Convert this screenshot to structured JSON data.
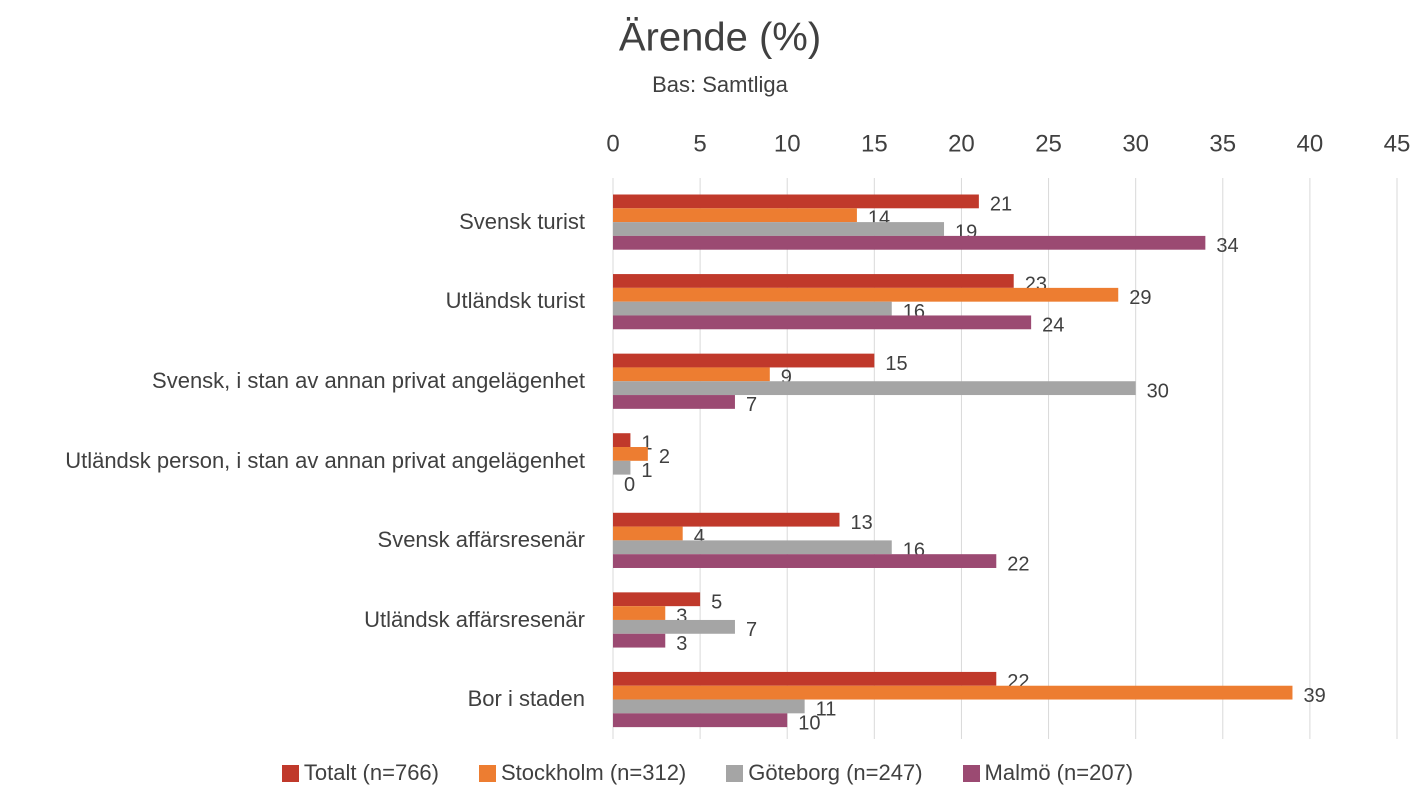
{
  "chart_data": {
    "type": "bar",
    "orientation": "horizontal",
    "title": "Ärende (%)",
    "subtitle": "Bas: Samtliga",
    "categories": [
      "Svensk turist",
      "Utländsk turist",
      "Svensk, i stan av annan privat angelägenhet",
      "Utländsk person, i stan av annan privat angelägenhet",
      "Svensk affärsresenär",
      "Utländsk affärsresenär",
      "Bor i staden"
    ],
    "series": [
      {
        "name": "Totalt (n=766)",
        "color": "#c0392b",
        "values": [
          21,
          23,
          15,
          1,
          13,
          5,
          22
        ]
      },
      {
        "name": "Stockholm (n=312)",
        "color": "#ed7d31",
        "values": [
          14,
          29,
          9,
          2,
          4,
          3,
          39
        ]
      },
      {
        "name": "Göteborg (n=247)",
        "color": "#a5a5a5",
        "values": [
          19,
          16,
          30,
          1,
          16,
          7,
          11
        ]
      },
      {
        "name": "Malmö (n=207)",
        "color": "#9b4a72",
        "values": [
          34,
          24,
          7,
          0,
          22,
          3,
          10
        ]
      }
    ],
    "xlim": [
      0,
      45
    ],
    "xticks": [
      0,
      5,
      10,
      15,
      20,
      25,
      30,
      35,
      40,
      45
    ],
    "grid": true,
    "legend": "bottom"
  }
}
